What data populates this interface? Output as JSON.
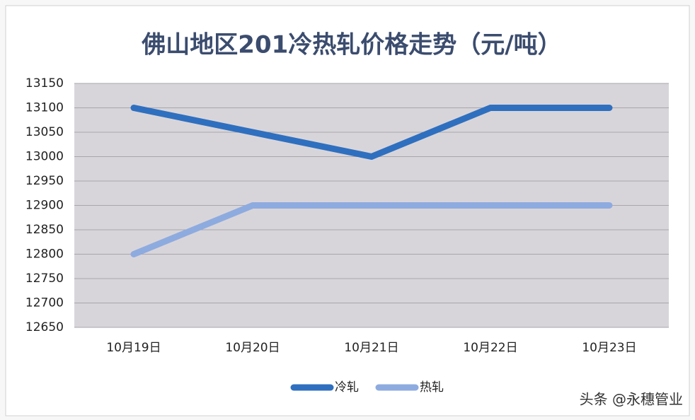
{
  "chart_data": {
    "type": "line",
    "title": "佛山地区201冷热轧价格走势（元/吨）",
    "categories": [
      "10月19日",
      "10月20日",
      "10月21日",
      "10月22日",
      "10月23日"
    ],
    "series": [
      {
        "name": "冷轧",
        "color": "#2f6fbf",
        "values": [
          13100,
          13050,
          13000,
          13100,
          13100
        ]
      },
      {
        "name": "热轧",
        "color": "#8eabdf",
        "values": [
          12800,
          12900,
          12900,
          12900,
          12900
        ]
      }
    ],
    "ylim": [
      12650,
      13150
    ],
    "yticks": [
      12650,
      12700,
      12750,
      12800,
      12850,
      12900,
      12950,
      13000,
      13050,
      13100,
      13150
    ],
    "grid": true,
    "legend": "bottom",
    "watermark": "头条 @永穗管业"
  }
}
